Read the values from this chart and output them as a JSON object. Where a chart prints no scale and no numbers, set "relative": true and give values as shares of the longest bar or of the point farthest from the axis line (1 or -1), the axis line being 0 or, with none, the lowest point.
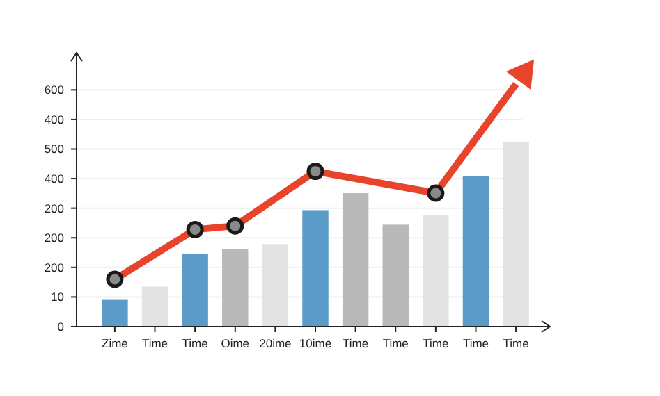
{
  "chart_data": {
    "type": "bar",
    "relative": true,
    "categories": [
      "Zime",
      "Time",
      "Time",
      "Oime",
      "20ime",
      "10ime",
      "Time",
      "Time",
      "Time",
      "Time",
      "Time"
    ],
    "series": [
      {
        "values": [
          0.11,
          0.165,
          0.3,
          0.32,
          0.34,
          0.48,
          0.55,
          0.42,
          0.46,
          0.62,
          0.76
        ],
        "colors": [
          "#5b9bc8",
          "#e3e3e3",
          "#5b9bc8",
          "#b9b9b9",
          "#e3e3e3",
          "#5b9bc8",
          "#b9b9b9",
          "#b9b9b9",
          "#e3e3e3",
          "#5b9bc8",
          "#e3e3e3"
        ]
      },
      {
        "type": "line",
        "color": "#e8442c",
        "values": [
          0.195,
          null,
          0.4,
          0.415,
          null,
          0.64,
          null,
          null,
          0.55,
          null,
          1
        ],
        "marker": "circle"
      }
    ],
    "annotations": [
      "0",
      "10",
      "200",
      "200",
      "200",
      "400",
      "500",
      "400",
      "600"
    ],
    "grid": "y"
  }
}
